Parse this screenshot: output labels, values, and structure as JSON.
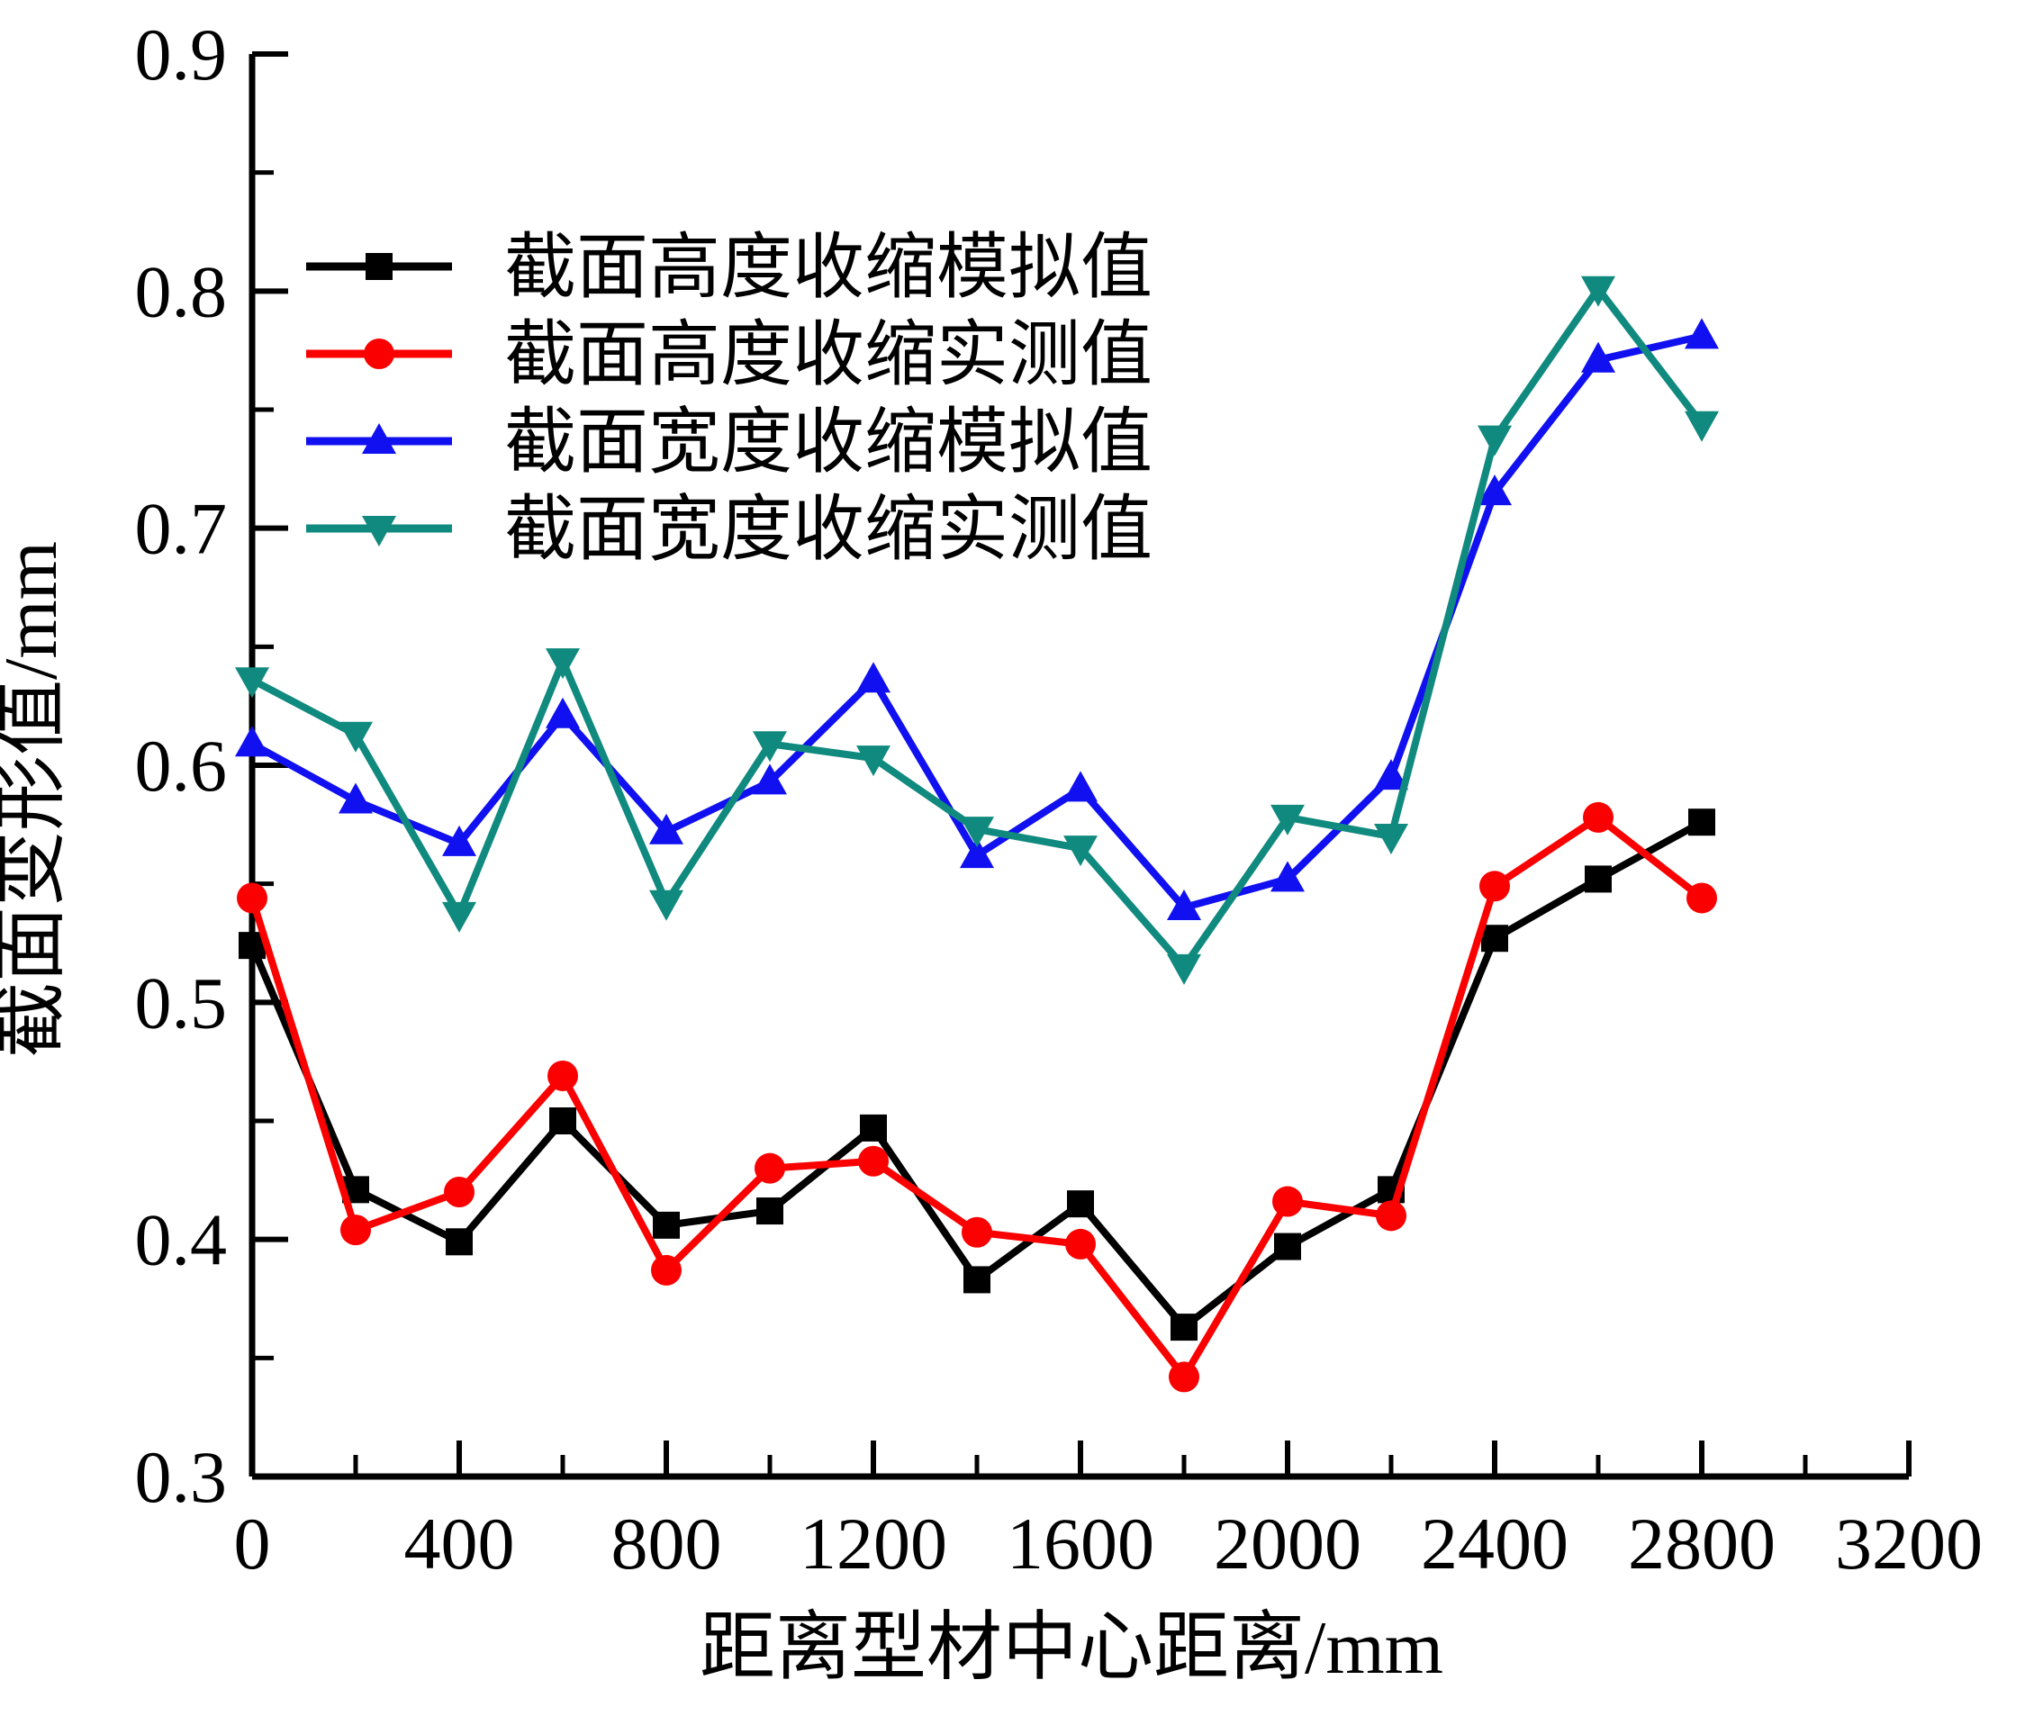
{
  "figure": {
    "background": "#ffffff"
  },
  "chart_data": {
    "type": "line",
    "title": "",
    "xlabel": "距离型材中心距离/mm",
    "ylabel": "截面变形值/mm",
    "xlim": [
      0,
      3200
    ],
    "ylim": [
      0.3,
      0.9
    ],
    "x_major_step": 400,
    "x_minor_step": 200,
    "y_major_step": 0.1,
    "y_minor_step": 0.05,
    "grid": false,
    "legend_position": "upper-left-inside",
    "x_tick_labels": [
      "0",
      "400",
      "800",
      "1200",
      "1600",
      "2000",
      "2400",
      "2800",
      "3200"
    ],
    "y_tick_labels": [
      "0.3",
      "0.4",
      "0.5",
      "0.6",
      "0.7",
      "0.8",
      "0.9"
    ],
    "x": [
      0,
      200,
      400,
      600,
      800,
      1000,
      1200,
      1400,
      1600,
      1800,
      2000,
      2200,
      2400,
      2600,
      2800
    ],
    "series": [
      {
        "name": "截面高度收缩模拟值",
        "color": "#000000",
        "marker": "square",
        "values": [
          0.524,
          0.421,
          0.399,
          0.45,
          0.406,
          0.412,
          0.447,
          0.383,
          0.415,
          0.363,
          0.397,
          0.421,
          0.527,
          0.552,
          0.576
        ]
      },
      {
        "name": "截面高度收缩实测值",
        "color": "#fb0000",
        "marker": "circle",
        "values": [
          0.544,
          0.404,
          0.42,
          0.469,
          0.387,
          0.43,
          0.433,
          0.403,
          0.398,
          0.342,
          0.416,
          0.41,
          0.549,
          0.578,
          0.544
        ]
      },
      {
        "name": "截面宽度收缩模拟值",
        "color": "#1010f0",
        "marker": "triangle-up",
        "values": [
          0.609,
          0.585,
          0.567,
          0.621,
          0.572,
          0.593,
          0.636,
          0.562,
          0.59,
          0.54,
          0.552,
          0.595,
          0.715,
          0.771,
          0.781
        ]
      },
      {
        "name": "截面宽度收缩实测值",
        "color": "#108a7e",
        "marker": "triangle-down",
        "values": [
          0.636,
          0.613,
          0.537,
          0.644,
          0.542,
          0.609,
          0.603,
          0.573,
          0.565,
          0.515,
          0.578,
          0.57,
          0.738,
          0.801,
          0.744
        ]
      }
    ]
  }
}
